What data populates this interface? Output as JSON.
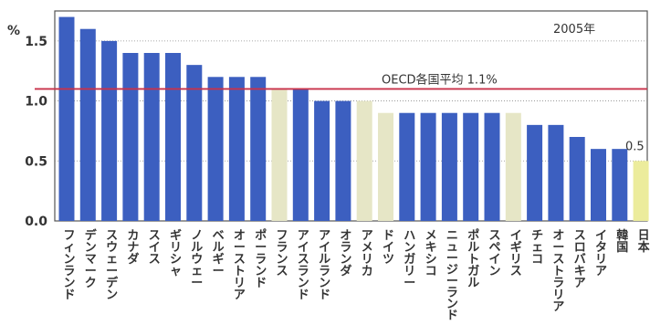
{
  "chart_data": {
    "type": "bar",
    "y_unit": "%",
    "year_label": "2005年",
    "ylim": [
      0,
      1.75
    ],
    "yticks": [
      "0.0",
      "0.5",
      "1.0",
      "1.5"
    ],
    "categories": [
      "フィンランド",
      "デンマーク",
      "スウェーデン",
      "カナダ",
      "スイス",
      "ギリシャ",
      "ノルウェー",
      "ベルギー",
      "オーストリア",
      "ポーランド",
      "フランス",
      "アイスランド",
      "アイルランド",
      "オランダ",
      "アメリカ",
      "ドイツ",
      "ハンガリー",
      "メキシコ",
      "ニュージーランド",
      "ポルトガル",
      "スペイン",
      "イギリス",
      "チェコ",
      "オーストラリア",
      "スロバキア",
      "イタリア",
      "韓国",
      "日本"
    ],
    "values": [
      1.7,
      1.6,
      1.5,
      1.4,
      1.4,
      1.4,
      1.3,
      1.2,
      1.2,
      1.2,
      1.1,
      1.1,
      1.0,
      1.0,
      1.0,
      0.9,
      0.9,
      0.9,
      0.9,
      0.9,
      0.9,
      0.9,
      0.8,
      0.8,
      0.7,
      0.6,
      0.6,
      0.5
    ],
    "highlight": [
      "normal",
      "normal",
      "normal",
      "normal",
      "normal",
      "normal",
      "normal",
      "normal",
      "normal",
      "normal",
      "light",
      "normal",
      "normal",
      "normal",
      "light",
      "light",
      "normal",
      "normal",
      "normal",
      "normal",
      "normal",
      "light",
      "normal",
      "normal",
      "normal",
      "normal",
      "normal",
      "japan"
    ],
    "reference_line": {
      "value": 1.1,
      "label": "OECD各国平均 1.1%"
    },
    "value_annotation": "0.5",
    "grid": true,
    "colors": {
      "normal": "#3c5fc0",
      "light": "#e6e6c6",
      "japan": "#ecec9c",
      "reference": "#c8324a",
      "grid": "#8c8c8c"
    }
  }
}
